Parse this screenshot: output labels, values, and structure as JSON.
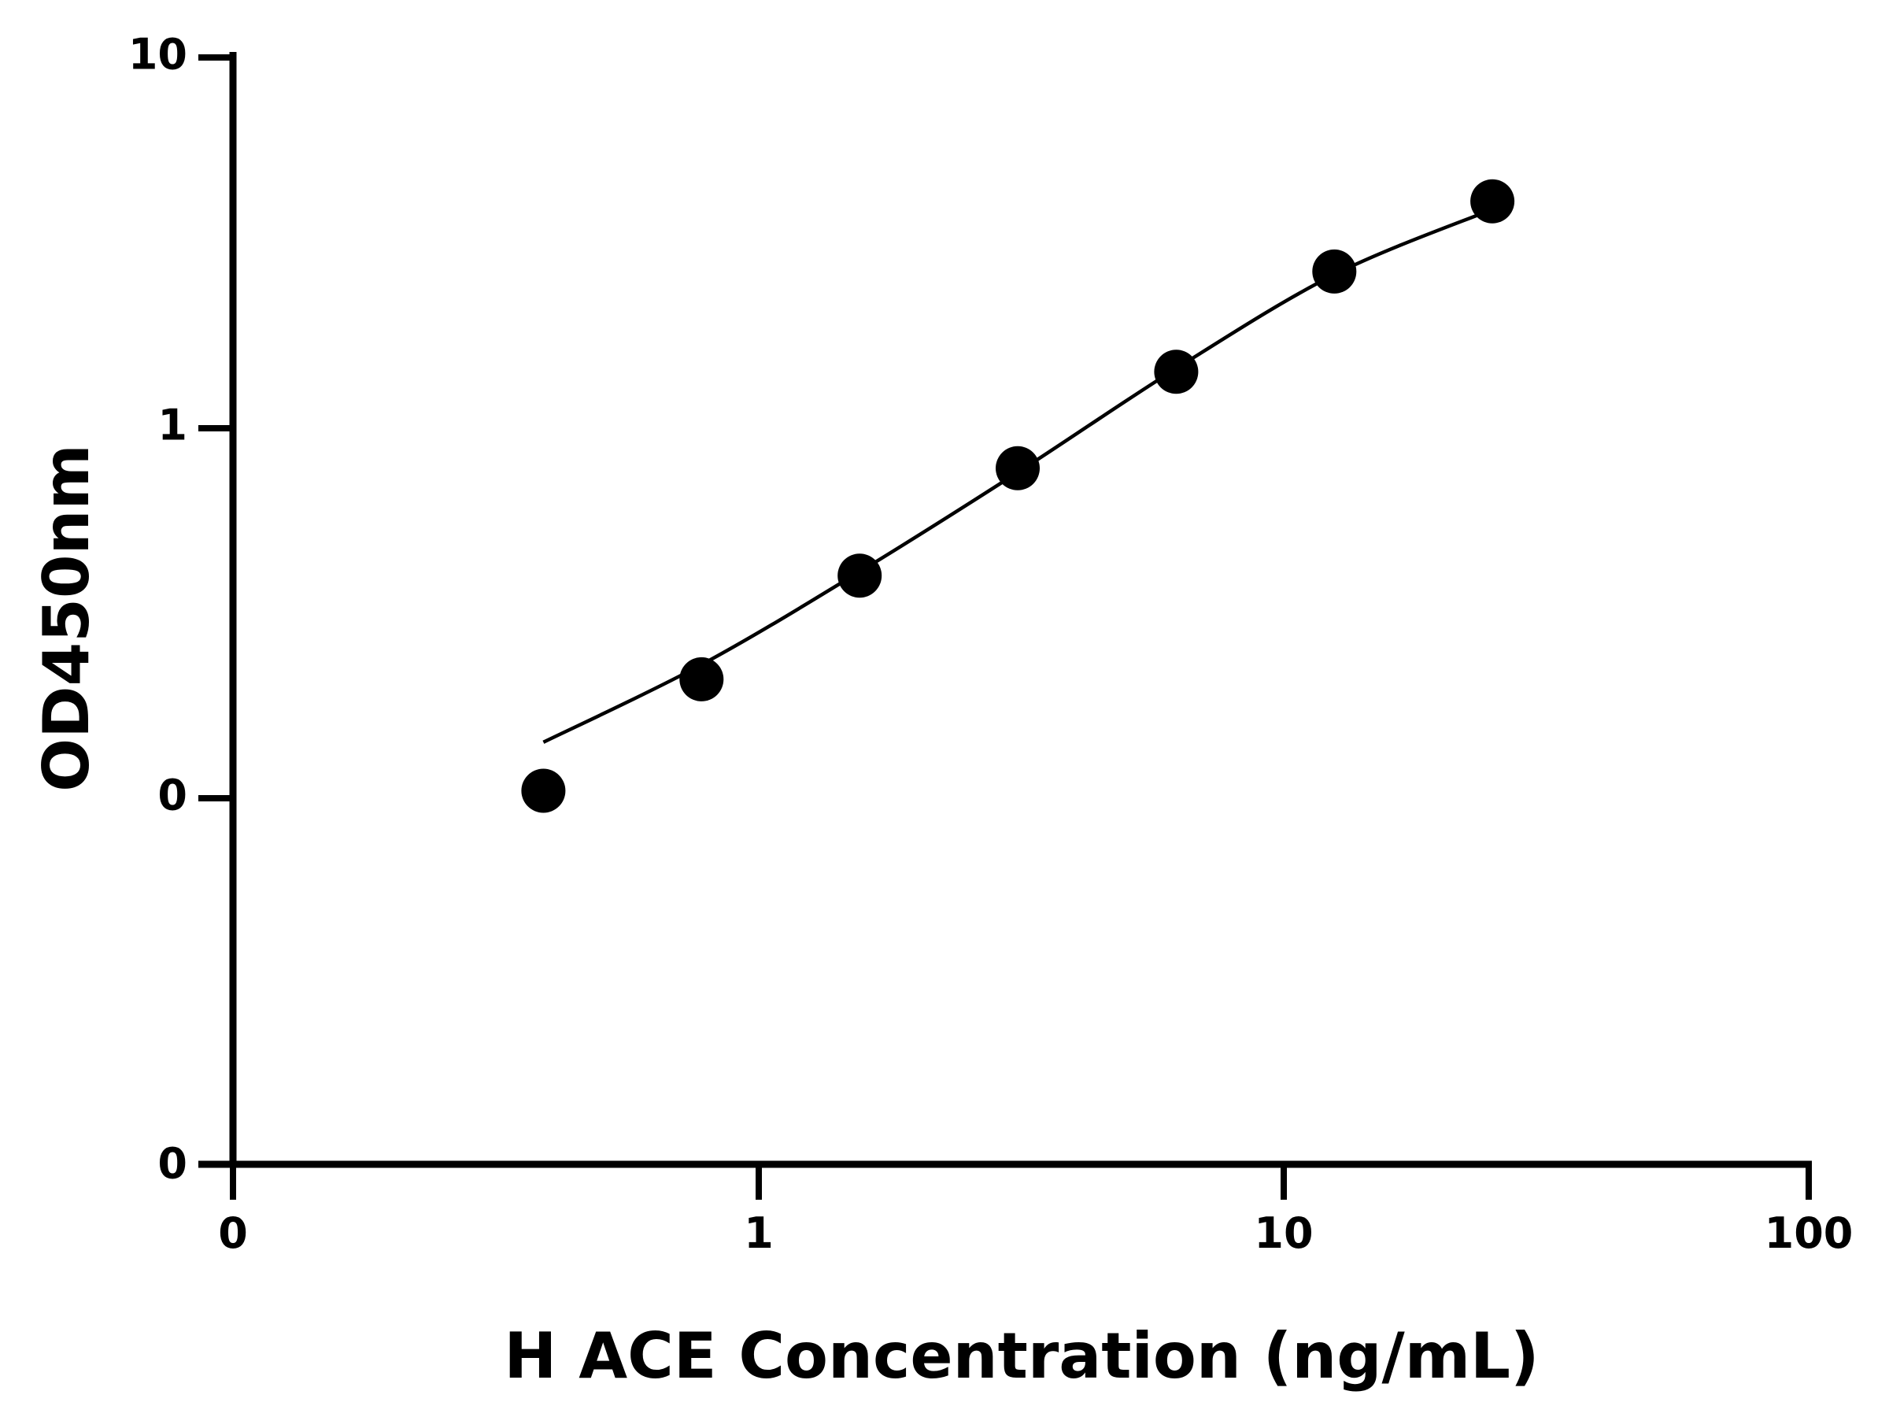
{
  "chart_data": {
    "type": "scatter",
    "title": "",
    "xlabel": "H ACE Concentration (ng/mL)",
    "ylabel": "OD450nm",
    "x_scale": "log",
    "y_scale": "log",
    "grid": false,
    "x_ticks": [
      "0",
      "1",
      "10",
      "100"
    ],
    "y_ticks": [
      "10",
      "1",
      "0",
      "0"
    ],
    "series": [
      {
        "points": [
          {
            "x": 0.39,
            "y": 0.105
          },
          {
            "x": 0.78,
            "y": 0.21
          },
          {
            "x": 1.56,
            "y": 0.4
          },
          {
            "x": 3.12,
            "y": 0.78
          },
          {
            "x": 6.25,
            "y": 1.42
          },
          {
            "x": 12.5,
            "y": 2.65
          },
          {
            "x": 25,
            "y": 4.1
          }
        ],
        "fit_curve": [
          {
            "x": 0.39,
            "y": 0.142
          },
          {
            "x": 0.78,
            "y": 0.23
          },
          {
            "x": 1.56,
            "y": 0.41
          },
          {
            "x": 3.12,
            "y": 0.76
          },
          {
            "x": 6.25,
            "y": 1.45
          },
          {
            "x": 12.5,
            "y": 2.6
          },
          {
            "x": 25,
            "y": 3.9
          }
        ],
        "color": "#000000"
      }
    ]
  }
}
